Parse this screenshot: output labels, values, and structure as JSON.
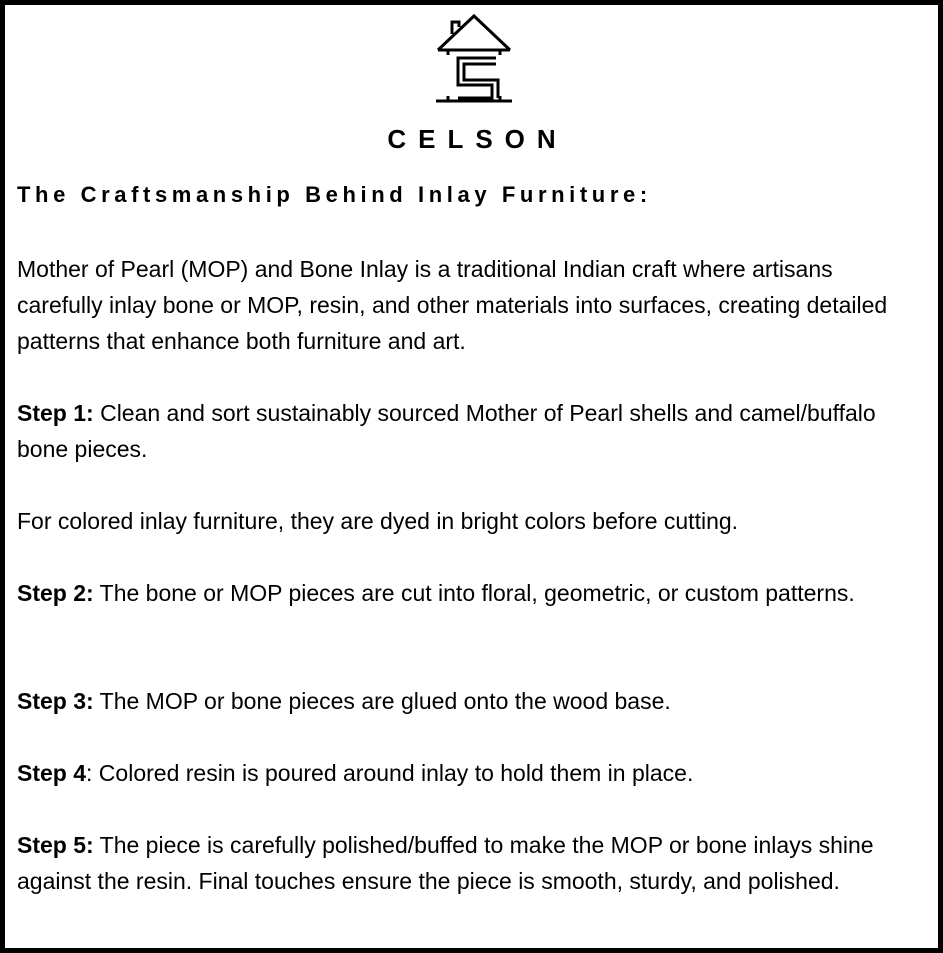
{
  "brand": {
    "name": "CELSON",
    "logo_icon": "house-c-logo-icon"
  },
  "heading": "The Craftsmanship Behind Inlay Furniture:",
  "intro": "Mother of Pearl (MOP) and Bone Inlay is a traditional Indian craft where artisans carefully inlay bone or MOP, resin, and other materials into surfaces, creating detailed patterns that enhance both furniture and art.",
  "steps": [
    {
      "label": "Step 1:",
      "text": " Clean and sort sustainably sourced Mother of Pearl shells and camel/buffalo bone pieces."
    },
    {
      "label": "",
      "text": "For colored inlay furniture, they are dyed in bright colors before cutting."
    },
    {
      "label": "Step 2:",
      "text": " The bone or MOP pieces are cut into floral, geometric, or custom patterns."
    },
    {
      "label": "Step 3:",
      "text": " The MOP or bone pieces are glued onto the wood base."
    },
    {
      "label": "Step 4",
      "text": ": Colored resin is poured around inlay to hold them in place."
    },
    {
      "label": "Step 5:",
      "text": " The piece is carefully polished/buffed to make the MOP or bone inlays shine against the resin. Final touches ensure the piece is smooth, sturdy, and polished."
    }
  ]
}
